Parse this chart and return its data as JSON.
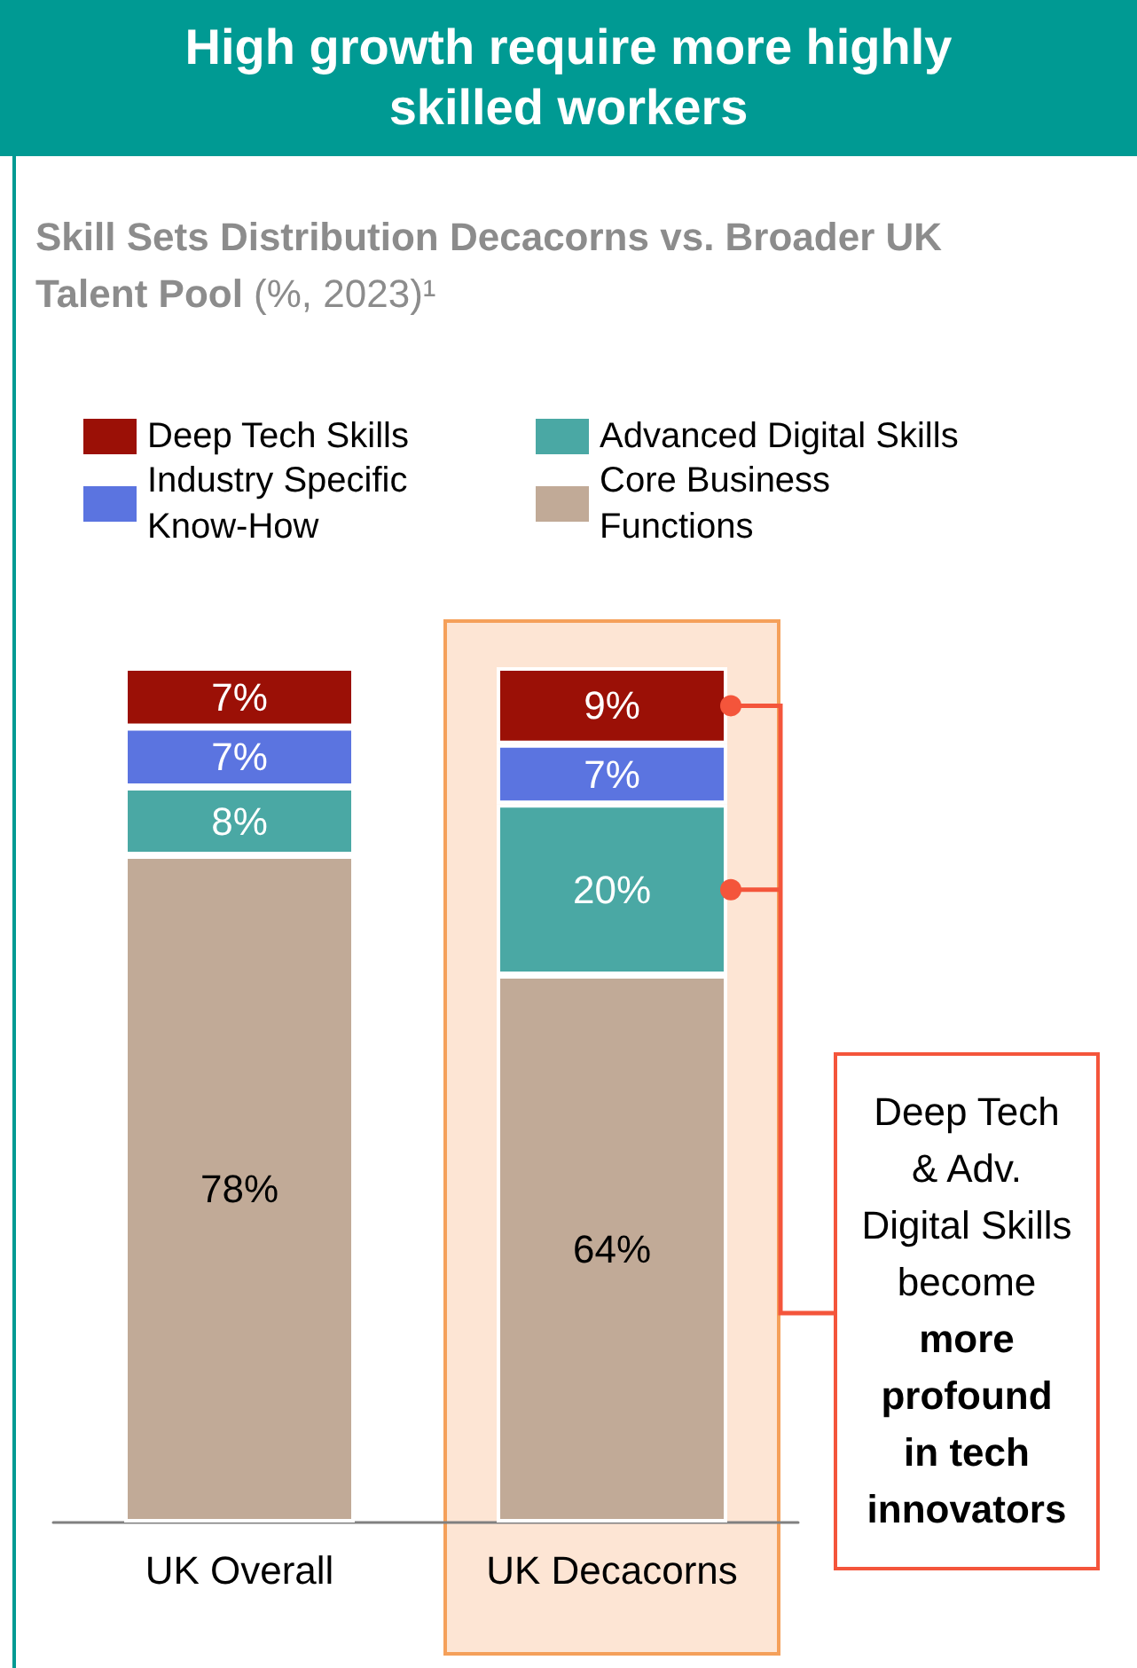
{
  "chart_data": {
    "type": "bar",
    "title": "High growth require more highly skilled workers",
    "subtitle": "Skill Sets Distribution Decacorns vs. Broader UK Talent Pool (%, 2023)¹",
    "categories": [
      "UK Overall",
      "UK Decacorns"
    ],
    "stacked": true,
    "series": [
      {
        "name": "Core Business Functions",
        "color": "#c1aa97",
        "values": [
          78,
          64
        ],
        "value_labels": [
          "78%",
          "64%"
        ]
      },
      {
        "name": "Advanced Digital Skills",
        "color": "#4aa8a4",
        "values": [
          8,
          20
        ],
        "value_labels": [
          "8%",
          "20%"
        ]
      },
      {
        "name": "Industry Specific Know-How",
        "color": "#5b74e0",
        "values": [
          7,
          7
        ],
        "value_labels": [
          "7%",
          "7%"
        ]
      },
      {
        "name": "Deep Tech Skills",
        "color": "#9b1006",
        "values": [
          7,
          9
        ],
        "value_labels": [
          "7%",
          "9%"
        ]
      }
    ],
    "bands": [
      {
        "axis": "x",
        "from": "UK Decacorns",
        "to": "UK Decacorns",
        "color": "#fde5d4"
      }
    ],
    "annotations": [
      "Deep Tech & Adv. Digital Skills become",
      "more profound in tech innovators"
    ],
    "legend": "top"
  }
}
